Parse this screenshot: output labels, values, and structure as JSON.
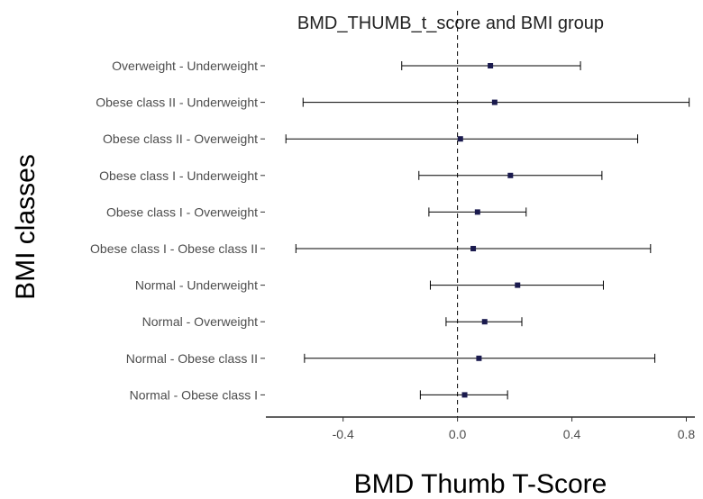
{
  "chart_data": {
    "type": "scatter",
    "subtype": "forest-plot-with-error-bars",
    "title": "BMD_THUMB_t_score and BMI group",
    "xlabel": "BMD Thumb T-Score",
    "ylabel": "BMI classes",
    "xlim": [
      -0.67,
      0.83
    ],
    "xticks": [
      -0.4,
      0.0,
      0.4,
      0.8
    ],
    "xtick_labels": [
      "-0.4",
      "0.0",
      "0.4",
      "0.8"
    ],
    "reference_line": {
      "x": 0,
      "style": "dashed"
    },
    "grid": false,
    "legend": "none",
    "point_color": "#1a1a4e",
    "line_color": "#000000",
    "categories": [
      "Overweight - Underweight",
      "Obese class II - Underweight",
      "Obese class II - Overweight",
      "Obese class I - Underweight",
      "Obese class I - Overweight",
      "Obese class I - Obese class II",
      "Normal - Underweight",
      "Normal - Overweight",
      "Normal - Obese class II",
      "Normal - Obese class I"
    ],
    "estimates": [
      0.115,
      0.13,
      0.01,
      0.185,
      0.07,
      0.055,
      0.21,
      0.095,
      0.075,
      0.025
    ],
    "lower": [
      -0.195,
      -0.54,
      -0.6,
      -0.135,
      -0.1,
      -0.565,
      -0.095,
      -0.04,
      -0.535,
      -0.13
    ],
    "upper": [
      0.43,
      0.81,
      0.63,
      0.505,
      0.24,
      0.675,
      0.51,
      0.225,
      0.69,
      0.175
    ]
  }
}
